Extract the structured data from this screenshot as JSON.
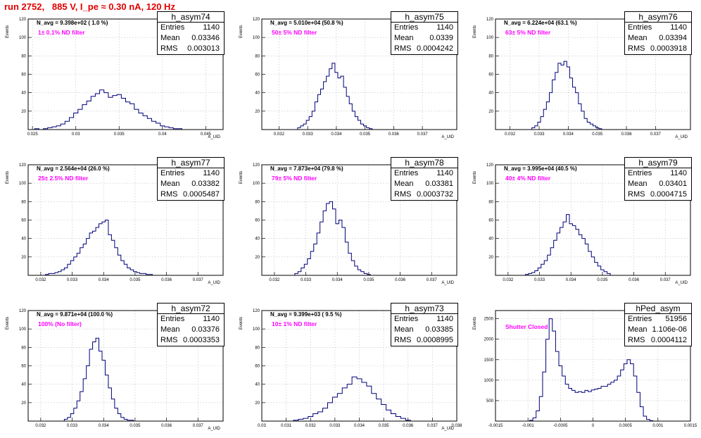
{
  "window_title": "run 2752,   885 V, I_pe ≈ 0.30 nA, 120 Hz",
  "stats_labels": {
    "entries": "Entries",
    "mean": "Mean",
    "rms": "RMS"
  },
  "colors": {
    "title": "#e00000",
    "filter_text": "#ff00ff",
    "hist_line": "#00007a"
  },
  "chart_data": [
    {
      "type": "bar",
      "name": "h_asym74",
      "navg": "N_avg = 9.398e+02 ( 1.0 %)",
      "filter": "1± 0.1% ND filter",
      "entries": "1140",
      "mean": "0.03346",
      "rms": "0.003013",
      "xlabel": "A_UID",
      "ylabel": "Events",
      "xlim": [
        0.0245,
        0.047
      ],
      "ylim": [
        0,
        120
      ],
      "xticks": [
        0.025,
        0.03,
        0.035,
        0.04,
        0.045
      ],
      "xtick_labels": [
        "0.025",
        "0.03",
        "0.035",
        "0.04",
        "0.045"
      ],
      "yticks": [
        20,
        40,
        60,
        80,
        100,
        120
      ],
      "ytick_labels": [
        "20",
        "40",
        "60",
        "80",
        "100",
        "120"
      ],
      "x": [
        0.0255,
        0.026,
        0.0265,
        0.027,
        0.0275,
        0.028,
        0.0285,
        0.029,
        0.0295,
        0.03,
        0.0305,
        0.031,
        0.0315,
        0.032,
        0.0325,
        0.033,
        0.0335,
        0.034,
        0.0345,
        0.035,
        0.0355,
        0.036,
        0.0365,
        0.037,
        0.0375,
        0.038,
        0.0385,
        0.039,
        0.0395,
        0.04,
        0.0405,
        0.041,
        0.0415,
        0.042
      ],
      "values": [
        1,
        0,
        1,
        2,
        3,
        4,
        6,
        9,
        13,
        18,
        22,
        27,
        31,
        36,
        39,
        43,
        40,
        35,
        37,
        38,
        34,
        30,
        28,
        22,
        18,
        15,
        12,
        9,
        7,
        4,
        3,
        2,
        1,
        1
      ]
    },
    {
      "type": "bar",
      "name": "h_asym75",
      "navg": "N_avg = 5.010e+04 (50.8 %)",
      "filter": "50± 5% ND filter",
      "entries": "1140",
      "mean": "0.0339",
      "rms": "0.0004242",
      "xlabel": "A_UID",
      "ylabel": "Events",
      "xlim": [
        0.0314,
        0.0382
      ],
      "ylim": [
        0,
        120
      ],
      "xticks": [
        0.032,
        0.033,
        0.034,
        0.035,
        0.036,
        0.037
      ],
      "xtick_labels": [
        "0.032",
        "0.033",
        "0.034",
        "0.035",
        "0.036",
        "0.037"
      ],
      "yticks": [
        20,
        40,
        60,
        80,
        100,
        120
      ],
      "ytick_labels": [
        "20",
        "40",
        "60",
        "80",
        "100",
        "120"
      ],
      "x": [
        0.0327,
        0.0328,
        0.0329,
        0.033,
        0.0331,
        0.0332,
        0.0333,
        0.0334,
        0.0335,
        0.0336,
        0.0337,
        0.0338,
        0.0339,
        0.034,
        0.0341,
        0.0342,
        0.0343,
        0.0344,
        0.0345,
        0.0346,
        0.0347,
        0.0348,
        0.0349,
        0.035,
        0.0351,
        0.0352
      ],
      "values": [
        2,
        4,
        6,
        10,
        14,
        20,
        30,
        38,
        44,
        52,
        58,
        66,
        72,
        62,
        56,
        58,
        46,
        36,
        28,
        20,
        14,
        10,
        6,
        4,
        2,
        1
      ]
    },
    {
      "type": "bar",
      "name": "h_asym76",
      "navg": "N_avg = 6.224e+04 (63.1 %)",
      "filter": "63± 5% ND filter",
      "entries": "1140",
      "mean": "0.03394",
      "rms": "0.0003918",
      "xlabel": "A_UID",
      "ylabel": "Events",
      "xlim": [
        0.0315,
        0.0382
      ],
      "ylim": [
        0,
        120
      ],
      "xticks": [
        0.032,
        0.033,
        0.034,
        0.035,
        0.036,
        0.037
      ],
      "xtick_labels": [
        "0.032",
        "0.033",
        "0.034",
        "0.035",
        "0.036",
        "0.037"
      ],
      "yticks": [
        20,
        40,
        60,
        80,
        100,
        120
      ],
      "ytick_labels": [
        "20",
        "40",
        "60",
        "80",
        "100",
        "120"
      ],
      "x": [
        0.0328,
        0.0329,
        0.033,
        0.0331,
        0.0332,
        0.0333,
        0.0334,
        0.0335,
        0.0336,
        0.0337,
        0.0338,
        0.0339,
        0.034,
        0.0341,
        0.0342,
        0.0343,
        0.0344,
        0.0345,
        0.0346,
        0.0347,
        0.0348,
        0.0349,
        0.035,
        0.0351
      ],
      "values": [
        2,
        4,
        8,
        14,
        22,
        30,
        40,
        54,
        62,
        72,
        70,
        74,
        68,
        56,
        46,
        40,
        28,
        20,
        12,
        8,
        6,
        4,
        2,
        1
      ]
    },
    {
      "type": "bar",
      "name": "h_asym77",
      "navg": "N_avg = 2.564e+04 (26.0 %)",
      "filter": "25± 2.5% ND filter",
      "entries": "1140",
      "mean": "0.03382",
      "rms": "0.0005487",
      "xlabel": "A_UID",
      "ylabel": "Events",
      "xlim": [
        0.0316,
        0.0378
      ],
      "ylim": [
        0,
        120
      ],
      "xticks": [
        0.032,
        0.033,
        0.034,
        0.035,
        0.036,
        0.037
      ],
      "xtick_labels": [
        "0.032",
        "0.033",
        "0.034",
        "0.035",
        "0.036",
        "0.037"
      ],
      "yticks": [
        20,
        40,
        60,
        80,
        100,
        120
      ],
      "ytick_labels": [
        "20",
        "40",
        "60",
        "80",
        "100",
        "120"
      ],
      "x": [
        0.0322,
        0.0323,
        0.0324,
        0.0325,
        0.0326,
        0.0327,
        0.0328,
        0.0329,
        0.033,
        0.0331,
        0.0332,
        0.0333,
        0.0334,
        0.0335,
        0.0336,
        0.0337,
        0.0338,
        0.0339,
        0.034,
        0.0341,
        0.0342,
        0.0343,
        0.0344,
        0.0345,
        0.0346,
        0.0347,
        0.0348,
        0.0349,
        0.035,
        0.0351,
        0.0352,
        0.0353,
        0.0354,
        0.0355
      ],
      "values": [
        1,
        2,
        2,
        3,
        4,
        6,
        8,
        12,
        16,
        20,
        24,
        30,
        34,
        40,
        46,
        48,
        52,
        56,
        58,
        60,
        44,
        38,
        30,
        22,
        16,
        12,
        8,
        6,
        4,
        3,
        2,
        2,
        1,
        1
      ]
    },
    {
      "type": "bar",
      "name": "h_asym78",
      "navg": "N_avg = 7.873e+04 (79.8 %)",
      "filter": "79± 5% ND filter",
      "entries": "1140",
      "mean": "0.03381",
      "rms": "0.0003732",
      "xlabel": "A_UID",
      "ylabel": "Events",
      "xlim": [
        0.0316,
        0.0378
      ],
      "ylim": [
        0,
        120
      ],
      "xticks": [
        0.032,
        0.033,
        0.034,
        0.035,
        0.036,
        0.037
      ],
      "xtick_labels": [
        "0.032",
        "0.033",
        "0.034",
        "0.035",
        "0.036",
        "0.037"
      ],
      "yticks": [
        20,
        40,
        60,
        80,
        100,
        120
      ],
      "ytick_labels": [
        "20",
        "40",
        "60",
        "80",
        "100",
        "120"
      ],
      "x": [
        0.0327,
        0.0328,
        0.0329,
        0.033,
        0.0331,
        0.0332,
        0.0333,
        0.0334,
        0.0335,
        0.0336,
        0.0337,
        0.0338,
        0.0339,
        0.034,
        0.0341,
        0.0342,
        0.0343,
        0.0344,
        0.0345,
        0.0346,
        0.0347,
        0.0348,
        0.0349,
        0.035
      ],
      "values": [
        2,
        4,
        8,
        12,
        18,
        26,
        34,
        46,
        58,
        70,
        78,
        80,
        72,
        56,
        60,
        52,
        36,
        24,
        16,
        10,
        6,
        4,
        2,
        1
      ]
    },
    {
      "type": "bar",
      "name": "h_asym79",
      "navg": "N_avg = 3.995e+04 (40.5 %)",
      "filter": "40± 4% ND filter",
      "entries": "1140",
      "mean": "0.03401",
      "rms": "0.0004715",
      "xlabel": "A_UID",
      "ylabel": "Events",
      "xlim": [
        0.0316,
        0.0378
      ],
      "ylim": [
        0,
        120
      ],
      "xticks": [
        0.032,
        0.033,
        0.034,
        0.035,
        0.036,
        0.037
      ],
      "xtick_labels": [
        "0.032",
        "0.033",
        "0.034",
        "0.035",
        "0.036",
        "0.037"
      ],
      "yticks": [
        20,
        40,
        60,
        80,
        100,
        120
      ],
      "ytick_labels": [
        "20",
        "40",
        "60",
        "80",
        "100",
        "120"
      ],
      "x": [
        0.0326,
        0.0327,
        0.0328,
        0.0329,
        0.033,
        0.0331,
        0.0332,
        0.0333,
        0.0334,
        0.0335,
        0.0336,
        0.0337,
        0.0338,
        0.0339,
        0.034,
        0.0341,
        0.0342,
        0.0343,
        0.0344,
        0.0345,
        0.0346,
        0.0347,
        0.0348,
        0.0349,
        0.035,
        0.0351,
        0.0352
      ],
      "values": [
        1,
        2,
        3,
        5,
        8,
        12,
        16,
        22,
        30,
        38,
        46,
        52,
        58,
        66,
        56,
        54,
        50,
        44,
        40,
        34,
        26,
        20,
        14,
        10,
        6,
        4,
        2
      ]
    },
    {
      "type": "bar",
      "name": "h_asym72",
      "navg": "N_avg = 9.871e+04 (100.0 %)",
      "filter": "100% (No filter)",
      "entries": "1140",
      "mean": "0.03376",
      "rms": "0.0003353",
      "xlabel": "A_UID",
      "ylabel": "Events",
      "xlim": [
        0.0316,
        0.0378
      ],
      "ylim": [
        0,
        120
      ],
      "xticks": [
        0.032,
        0.033,
        0.034,
        0.035,
        0.036,
        0.037
      ],
      "xtick_labels": [
        "0.032",
        "0.033",
        "0.034",
        "0.035",
        "0.036",
        "0.037"
      ],
      "yticks": [
        20,
        40,
        60,
        80,
        100,
        120
      ],
      "ytick_labels": [
        "20",
        "40",
        "60",
        "80",
        "100",
        "120"
      ],
      "x": [
        0.0328,
        0.0329,
        0.033,
        0.0331,
        0.0332,
        0.0333,
        0.0334,
        0.0335,
        0.0336,
        0.0337,
        0.0338,
        0.0339,
        0.034,
        0.0341,
        0.0342,
        0.0343,
        0.0344,
        0.0345,
        0.0346,
        0.0347,
        0.0348,
        0.0349
      ],
      "values": [
        2,
        4,
        8,
        14,
        22,
        32,
        46,
        60,
        78,
        86,
        90,
        76,
        66,
        50,
        36,
        24,
        14,
        8,
        4,
        2,
        1,
        1
      ]
    },
    {
      "type": "bar",
      "name": "h_asym73",
      "navg": "N_avg = 9.399e+03 ( 9.5 %)",
      "filter": "10± 1% ND filter",
      "entries": "1140",
      "mean": "0.03385",
      "rms": "0.0008995",
      "xlabel": "A_UID",
      "ylabel": "Events",
      "xlim": [
        0.03,
        0.038
      ],
      "ylim": [
        0,
        120
      ],
      "xticks": [
        0.03,
        0.031,
        0.032,
        0.033,
        0.034,
        0.035,
        0.036,
        0.037,
        0.038
      ],
      "xtick_labels": [
        "0.03",
        "0.031",
        "0.032",
        "0.033",
        "0.034",
        "0.035",
        "0.036",
        "0.037",
        "0.038"
      ],
      "yticks": [
        20,
        40,
        60,
        80,
        100,
        120
      ],
      "ytick_labels": [
        "20",
        "40",
        "60",
        "80",
        "100",
        "120"
      ],
      "x": [
        0.0314,
        0.0316,
        0.0318,
        0.032,
        0.0322,
        0.0324,
        0.0326,
        0.0328,
        0.033,
        0.0332,
        0.0334,
        0.0336,
        0.0338,
        0.034,
        0.0342,
        0.0344,
        0.0346,
        0.0348,
        0.035,
        0.0352,
        0.0354,
        0.0356,
        0.0358,
        0.036
      ],
      "values": [
        1,
        2,
        3,
        5,
        8,
        10,
        14,
        20,
        26,
        30,
        36,
        40,
        48,
        46,
        42,
        38,
        30,
        24,
        18,
        12,
        8,
        5,
        3,
        1
      ]
    },
    {
      "type": "bar",
      "name": "hPed_asym",
      "navg": "",
      "filter": "Shutter Closed",
      "entries": "51956",
      "mean": "1.106e-06",
      "rms": "0.0004112",
      "xlabel": "",
      "ylabel": "Events",
      "xlim": [
        -0.0015,
        0.0015
      ],
      "ylim": [
        0,
        2700
      ],
      "xticks": [
        -0.0015,
        -0.001,
        -0.0005,
        0,
        0.0005,
        0.001,
        0.0015
      ],
      "xtick_labels": [
        "-0.0015",
        "-0.001",
        "-0.0005",
        "0",
        "0.0005",
        "0.001",
        "0.0015"
      ],
      "yticks": [
        500,
        1000,
        1500,
        2000,
        2500
      ],
      "ytick_labels": [
        "500",
        "1000",
        "1500",
        "2000",
        "2500"
      ],
      "x": [
        -0.00095,
        -0.0009,
        -0.00085,
        -0.0008,
        -0.00075,
        -0.0007,
        -0.00065,
        -0.0006,
        -0.00055,
        -0.0005,
        -0.00045,
        -0.0004,
        -0.00035,
        -0.0003,
        -0.00025,
        -0.0002,
        -0.00015,
        -0.0001,
        -5e-05,
        0,
        5e-05,
        0.0001,
        0.00015,
        0.0002,
        0.00025,
        0.0003,
        0.00035,
        0.0004,
        0.00045,
        0.0005,
        0.00055,
        0.0006,
        0.00065,
        0.0007,
        0.00075,
        0.0008,
        0.00085,
        0.0009
      ],
      "values": [
        20,
        80,
        250,
        600,
        1200,
        2000,
        2500,
        2200,
        1700,
        1350,
        1100,
        900,
        800,
        750,
        700,
        720,
        700,
        750,
        720,
        760,
        780,
        800,
        850,
        850,
        900,
        950,
        1000,
        1100,
        1250,
        1400,
        1500,
        1400,
        1100,
        700,
        350,
        120,
        40,
        10
      ]
    }
  ]
}
